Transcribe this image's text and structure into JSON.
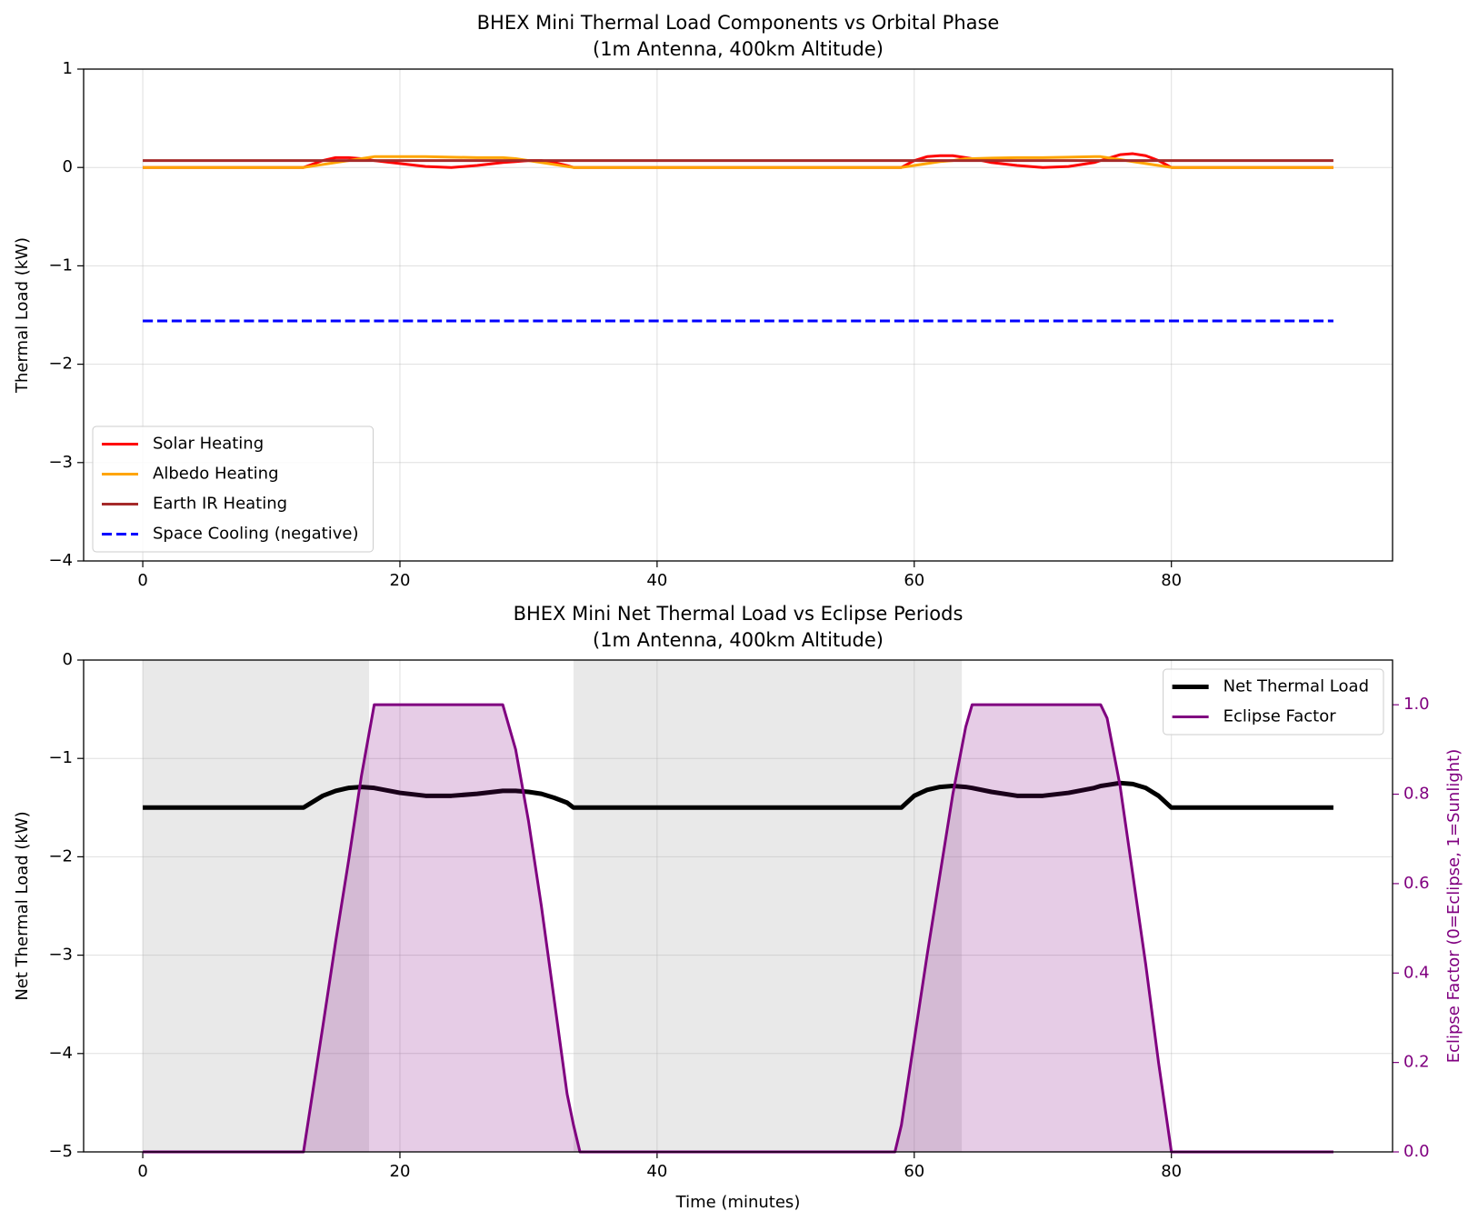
{
  "chart_data": [
    {
      "type": "line",
      "title": "BHEX Mini Thermal Load Components vs Orbital Phase",
      "subtitle": "(1m Antenna, 400km Altitude)",
      "y_label": "Thermal Load (kW)",
      "xlim": [
        -4.6,
        97.2
      ],
      "xticks": [
        0,
        20,
        40,
        60,
        80
      ],
      "ylim": [
        -4,
        1
      ],
      "yticks": [
        {
          "value": -4,
          "label": "−4"
        },
        {
          "value": -3,
          "label": "−3"
        },
        {
          "value": -2,
          "label": "−2"
        },
        {
          "value": -1,
          "label": "−1"
        },
        0,
        1
      ],
      "grid": true,
      "legend": "lower left",
      "x": [
        0,
        10,
        12.5,
        14,
        15,
        16,
        17,
        18,
        20,
        22,
        24,
        26,
        28,
        29,
        30,
        31,
        32,
        33,
        33.5,
        34,
        40,
        50,
        58.5,
        59,
        60,
        61,
        62,
        63,
        64,
        64.5,
        66,
        68,
        70,
        72,
        74,
        74.5,
        75,
        76,
        77,
        78,
        79,
        80,
        85,
        92.6
      ],
      "series": [
        {
          "name": "Solar Heating",
          "color": "#ff0000",
          "linewidth": 3,
          "linestyle": "solid",
          "values": [
            0,
            0,
            0,
            0.07,
            0.1,
            0.1,
            0.09,
            0.07,
            0.04,
            0.01,
            0.0,
            0.02,
            0.05,
            0.06,
            0.07,
            0.07,
            0.05,
            0.02,
            0,
            0,
            0,
            0,
            0,
            0,
            0.07,
            0.11,
            0.12,
            0.12,
            0.1,
            0.09,
            0.05,
            0.02,
            0.0,
            0.01,
            0.05,
            0.07,
            0.09,
            0.13,
            0.14,
            0.12,
            0.07,
            0,
            0,
            0
          ]
        },
        {
          "name": "Albedo Heating",
          "color": "#ffa500",
          "linewidth": 3,
          "linestyle": "solid",
          "values": [
            0,
            0,
            0,
            0.03,
            0.05,
            0.07,
            0.09,
            0.11,
            0.11,
            0.11,
            0.105,
            0.1,
            0.1,
            0.09,
            0.07,
            0.05,
            0.03,
            0.01,
            0,
            0,
            0,
            0,
            0,
            0,
            0.02,
            0.04,
            0.06,
            0.07,
            0.09,
            0.09,
            0.095,
            0.1,
            0.1,
            0.105,
            0.11,
            0.11,
            0.1,
            0.08,
            0.06,
            0.04,
            0.02,
            0,
            0,
            0
          ]
        },
        {
          "name": "Earth IR Heating",
          "color": "#a52a2a",
          "linewidth": 3,
          "linestyle": "solid",
          "values": [
            0.07,
            0.07,
            0.07,
            0.07,
            0.07,
            0.07,
            0.07,
            0.07,
            0.07,
            0.07,
            0.07,
            0.07,
            0.07,
            0.07,
            0.07,
            0.07,
            0.07,
            0.07,
            0.07,
            0.07,
            0.07,
            0.07,
            0.07,
            0.07,
            0.07,
            0.07,
            0.07,
            0.07,
            0.07,
            0.07,
            0.07,
            0.07,
            0.07,
            0.07,
            0.07,
            0.07,
            0.07,
            0.07,
            0.07,
            0.07,
            0.07,
            0.07,
            0.07,
            0.07
          ]
        },
        {
          "name": "Space Cooling (negative)",
          "color": "#0000ff",
          "linewidth": 3,
          "linestyle": "dashed",
          "values": [
            -1.56,
            -1.56,
            -1.56,
            -1.56,
            -1.56,
            -1.56,
            -1.56,
            -1.56,
            -1.56,
            -1.56,
            -1.56,
            -1.56,
            -1.56,
            -1.56,
            -1.56,
            -1.56,
            -1.56,
            -1.56,
            -1.56,
            -1.56,
            -1.56,
            -1.56,
            -1.56,
            -1.56,
            -1.56,
            -1.56,
            -1.56,
            -1.56,
            -1.56,
            -1.56,
            -1.56,
            -1.56,
            -1.56,
            -1.56,
            -1.56,
            -1.56,
            -1.56,
            -1.56,
            -1.56,
            -1.56,
            -1.56,
            -1.56,
            -1.56,
            -1.56
          ]
        }
      ]
    },
    {
      "type": "line",
      "title": "BHEX Mini Net Thermal Load vs Eclipse Periods",
      "subtitle": "(1m Antenna, 400km Altitude)",
      "x_label": "Time (minutes)",
      "y_label": "Net Thermal Load (kW)",
      "y2_label": "Eclipse Factor (0=Eclipse, 1=Sunlight)",
      "y2_color": "#800080",
      "xlim": [
        -4.6,
        97.2
      ],
      "xticks": [
        0,
        20,
        40,
        60,
        80
      ],
      "ylim": [
        -5,
        0
      ],
      "yticks": [
        {
          "value": -5,
          "label": "−5"
        },
        {
          "value": -4,
          "label": "−4"
        },
        {
          "value": -3,
          "label": "−3"
        },
        {
          "value": -2,
          "label": "−2"
        },
        {
          "value": -1,
          "label": "−1"
        },
        0
      ],
      "y2lim": [
        0,
        1.1
      ],
      "y2ticks": [
        {
          "value": 0,
          "label": "0.0"
        },
        {
          "value": 0.2,
          "label": "0.2"
        },
        {
          "value": 0.4,
          "label": "0.4"
        },
        {
          "value": 0.6,
          "label": "0.6"
        },
        {
          "value": 0.8,
          "label": "0.8"
        },
        {
          "value": 1,
          "label": "1.0"
        }
      ],
      "grid": true,
      "legend": "upper right",
      "shaded_spans": [
        [
          0,
          17.6
        ],
        [
          33.5,
          63.7
        ]
      ],
      "span_color": "#c8c8c8",
      "x": [
        0,
        10,
        12.5,
        14,
        15,
        16,
        17,
        18,
        20,
        22,
        24,
        26,
        28,
        29,
        30,
        31,
        32,
        33,
        33.5,
        34,
        40,
        50,
        58.5,
        59,
        60,
        61,
        62,
        63,
        64,
        64.5,
        66,
        68,
        70,
        72,
        74,
        74.5,
        75,
        76,
        77,
        78,
        79,
        80,
        85,
        92.6
      ],
      "series": [
        {
          "name": "Net Thermal Load",
          "color": "#000000",
          "linewidth": 5,
          "linestyle": "solid",
          "values": [
            -1.5,
            -1.5,
            -1.5,
            -1.38,
            -1.33,
            -1.3,
            -1.29,
            -1.3,
            -1.35,
            -1.38,
            -1.38,
            -1.36,
            -1.33,
            -1.33,
            -1.34,
            -1.36,
            -1.4,
            -1.45,
            -1.5,
            -1.5,
            -1.5,
            -1.5,
            -1.5,
            -1.5,
            -1.38,
            -1.32,
            -1.29,
            -1.28,
            -1.29,
            -1.3,
            -1.34,
            -1.38,
            -1.38,
            -1.35,
            -1.3,
            -1.28,
            -1.27,
            -1.25,
            -1.26,
            -1.3,
            -1.38,
            -1.5,
            -1.5,
            -1.5
          ]
        },
        {
          "name": "Eclipse Factor",
          "color": "#800080",
          "linewidth": 3,
          "linestyle": "solid",
          "axis": "y2",
          "fill": true,
          "values": [
            0,
            0,
            0,
            0.28,
            0.47,
            0.65,
            0.84,
            1,
            1,
            1,
            1,
            1,
            1,
            0.9,
            0.74,
            0.55,
            0.34,
            0.13,
            0.06,
            0,
            0,
            0,
            0,
            0.06,
            0.25,
            0.44,
            0.62,
            0.8,
            0.95,
            1,
            1,
            1,
            1,
            1,
            1,
            1,
            0.97,
            0.82,
            0.62,
            0.42,
            0.2,
            0,
            0,
            0
          ]
        }
      ]
    }
  ]
}
